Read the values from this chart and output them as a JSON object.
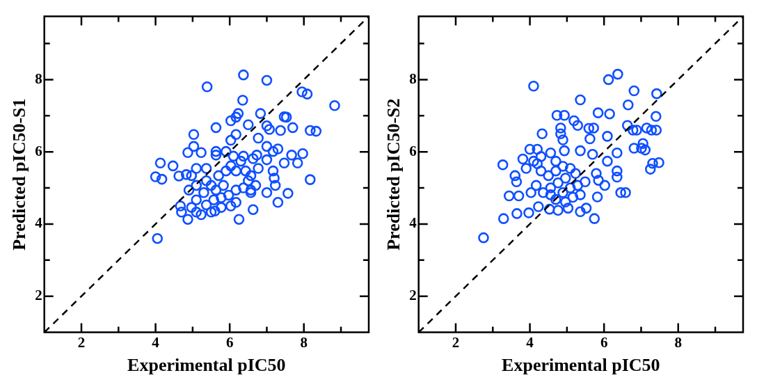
{
  "chart_data": [
    {
      "type": "scatter",
      "xlabel": "Experimental pIC50",
      "ylabel": "Predicted pIC50-S1",
      "xlim": [
        1,
        9.75
      ],
      "ylim": [
        1,
        9.75
      ],
      "xticks": [
        2,
        {
          "value": 3,
          "label": null
        },
        4,
        {
          "value": 5,
          "label": null
        },
        6,
        {
          "value": 7,
          "label": null
        },
        8,
        {
          "value": 9,
          "label": null
        }
      ],
      "yticks": [
        2,
        {
          "value": 3,
          "label": null
        },
        4,
        {
          "value": 5,
          "label": null
        },
        6,
        {
          "value": 7,
          "label": null
        },
        8,
        {
          "value": 9,
          "label": null
        }
      ],
      "series": [
        {
          "type": "scatter",
          "color": "#0f4fff",
          "marker": "circle",
          "x": [
            6.37,
            7.0,
            5.39,
            7.95,
            8.09,
            8.83,
            6.35,
            6.83,
            6.23,
            6.03,
            6.17,
            7.47,
            7.53,
            5.63,
            6.5,
            7.0,
            7.07,
            7.37,
            7.7,
            8.17,
            8.33,
            5.03,
            6.17,
            6.03,
            6.77,
            5.03,
            5.23,
            4.87,
            5.63,
            5.63,
            7.0,
            7.3,
            7.17,
            6.73,
            7.67,
            7.97,
            4.13,
            4.47,
            4.0,
            4.17,
            4.63,
            4.83,
            7.47,
            7.83,
            7.0,
            7.17,
            7.2,
            7.23,
            8.17,
            7.0,
            7.57,
            7.3,
            6.63,
            6.25,
            4.87,
            4.7,
            4.67,
            5.23,
            5.6,
            6.03,
            4.05,
            4.9,
            5.1,
            5.37,
            5.5,
            5.7,
            5.9,
            6.03,
            6.17,
            6.3,
            6.43,
            6.57,
            6.7,
            6.57,
            6.37,
            6.17,
            5.97,
            5.77,
            5.57,
            5.37,
            5.1,
            4.97,
            5.83,
            5.63,
            5.3,
            5.1,
            4.97,
            5.37,
            6.1,
            6.37,
            6.63,
            6.77,
            6.5,
            6.17,
            5.77,
            5.5,
            5.1,
            5.9,
            6.57
          ],
          "values": [
            8.13,
            7.98,
            7.8,
            7.66,
            7.6,
            7.28,
            7.43,
            7.06,
            7.06,
            6.86,
            6.96,
            6.97,
            6.96,
            6.67,
            6.75,
            6.72,
            6.62,
            6.59,
            6.67,
            6.59,
            6.57,
            6.48,
            6.48,
            6.32,
            6.38,
            6.15,
            5.98,
            5.98,
            6.01,
            5.91,
            6.15,
            6.08,
            6.01,
            5.91,
            5.91,
            5.95,
            5.69,
            5.61,
            5.31,
            5.24,
            5.33,
            5.37,
            5.69,
            5.69,
            5.78,
            5.47,
            5.27,
            5.07,
            5.23,
            4.87,
            4.85,
            4.6,
            4.4,
            4.13,
            4.13,
            4.33,
            4.5,
            4.26,
            4.36,
            4.5,
            3.6,
            4.94,
            5.07,
            5.2,
            5.07,
            5.34,
            5.47,
            5.61,
            5.47,
            5.74,
            5.47,
            5.34,
            5.07,
            4.87,
            5.0,
            4.94,
            4.8,
            4.73,
            4.67,
            4.53,
            4.67,
            4.46,
            5.07,
            4.94,
            4.87,
            5.54,
            5.34,
            5.54,
            5.88,
            5.88,
            5.81,
            5.54,
            5.2,
            4.6,
            4.46,
            4.33,
            4.33,
            6.01,
            4.94
          ]
        },
        {
          "type": "line",
          "color": "#000000",
          "marker": "none",
          "line_style": "dashed",
          "x": [
            1,
            9.75
          ],
          "values": [
            1,
            9.75
          ]
        }
      ]
    },
    {
      "type": "scatter",
      "xlabel": "Experimental pIC50",
      "ylabel": "Predicted pIC50-S2",
      "xlim": [
        1,
        9.75
      ],
      "ylim": [
        1,
        9.75
      ],
      "xticks": [
        2,
        {
          "value": 3,
          "label": null
        },
        4,
        {
          "value": 5,
          "label": null
        },
        6,
        {
          "value": 7,
          "label": null
        },
        8,
        {
          "value": 9,
          "label": null
        }
      ],
      "yticks": [
        2,
        {
          "value": 3,
          "label": null
        },
        4,
        {
          "value": 5,
          "label": null
        },
        6,
        {
          "value": 7,
          "label": null
        },
        8,
        {
          "value": 9,
          "label": null
        }
      ],
      "series": [
        {
          "type": "scatter",
          "color": "#0f4fff",
          "marker": "circle",
          "x": [
            6.37,
            6.12,
            4.1,
            5.36,
            6.81,
            7.42,
            6.65,
            5.84,
            6.15,
            4.73,
            4.93,
            5.19,
            5.29,
            5.59,
            5.72,
            4.83,
            4.83,
            4.89,
            4.33,
            5.62,
            6.09,
            6.63,
            6.78,
            6.88,
            7.15,
            7.28,
            7.41,
            7.4,
            6.81,
            7.01,
            7.11,
            7.05,
            6.35,
            7.48,
            7.31,
            7.25,
            3.27,
            3.81,
            4.0,
            4.2,
            4.56,
            4.93,
            5.36,
            5.69,
            3.6,
            3.64,
            3.9,
            4.2,
            3.44,
            3.7,
            3.29,
            3.65,
            3.97,
            4.23,
            4.53,
            4.76,
            5.03,
            5.36,
            5.52,
            5.74,
            5.82,
            6.02,
            5.79,
            5.85,
            6.35,
            6.35,
            6.45,
            6.58,
            6.09,
            5.49,
            2.75,
            4.3,
            4.5,
            4.7,
            4.89,
            5.09,
            5.23,
            4.96,
            4.76,
            4.56,
            4.36,
            4.17,
            4.03,
            4.89,
            5.09,
            5.29,
            5.16,
            4.96,
            4.7,
            4.56,
            5.36,
            4.3,
            4.1,
            4.7
          ],
          "values": [
            8.15,
            8.0,
            7.82,
            7.44,
            7.69,
            7.61,
            7.3,
            7.08,
            7.05,
            7.01,
            7.01,
            6.86,
            6.73,
            6.65,
            6.66,
            6.66,
            6.5,
            6.33,
            6.5,
            6.36,
            6.43,
            6.73,
            6.6,
            6.6,
            6.66,
            6.6,
            6.6,
            6.98,
            6.1,
            6.1,
            6.05,
            6.23,
            5.97,
            5.7,
            5.68,
            5.52,
            5.64,
            5.8,
            6.07,
            6.07,
            5.97,
            6.03,
            6.03,
            5.93,
            5.34,
            5.17,
            5.54,
            5.67,
            4.78,
            4.78,
            4.15,
            4.29,
            4.31,
            4.48,
            4.41,
            4.38,
            4.44,
            4.34,
            4.44,
            4.15,
            4.75,
            5.07,
            5.4,
            5.21,
            5.47,
            5.3,
            4.87,
            4.87,
            5.74,
            5.17,
            3.62,
            5.47,
            5.34,
            5.47,
            5.6,
            5.54,
            5.4,
            5.27,
            5.14,
            5.0,
            4.87,
            5.07,
            4.87,
            4.87,
            5.0,
            5.07,
            4.74,
            4.61,
            4.68,
            4.81,
            4.81,
            5.87,
            5.74,
            5.74
          ]
        },
        {
          "type": "line",
          "color": "#000000",
          "marker": "none",
          "line_style": "dashed",
          "x": [
            1,
            9.75
          ],
          "values": [
            1,
            9.75
          ]
        }
      ]
    }
  ]
}
